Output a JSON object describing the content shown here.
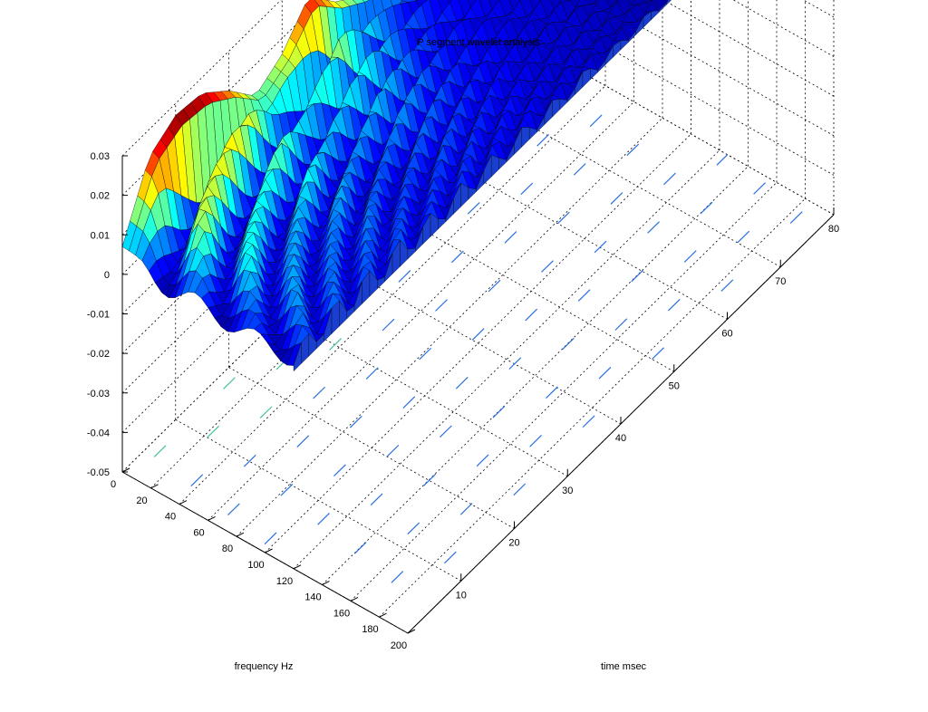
{
  "chart_data": {
    "type": "surface",
    "title": "P segment wavelet analysis",
    "xlabel": "time msec",
    "ylabel": "frequency Hz",
    "zlabel": "",
    "x_ticks": [
      "10",
      "20",
      "30",
      "40",
      "50",
      "60",
      "70",
      "80"
    ],
    "y_ticks": [
      "0",
      "20",
      "40",
      "60",
      "80",
      "100",
      "120",
      "140",
      "160",
      "180",
      "200"
    ],
    "z_ticks": [
      "-0.05",
      "-0.04",
      "-0.03",
      "-0.02",
      "-0.01",
      "0",
      "0.01",
      "0.02",
      "0.03"
    ],
    "xlim": [
      0,
      80
    ],
    "ylim": [
      0,
      200
    ],
    "zlim": [
      -0.05,
      0.03
    ],
    "grid": true,
    "colormap": "jet",
    "contour_projection": "floor",
    "surface_z_samples": {
      "time_msec": [
        0,
        5,
        10,
        15,
        20,
        25,
        30,
        35,
        40,
        45,
        50,
        55,
        60,
        65,
        70,
        75,
        80
      ],
      "frequency_hz": [
        0,
        40,
        80,
        120,
        160,
        200
      ],
      "rows": [
        [
          0.007,
          0.023,
          0.027,
          0.026,
          0.02,
          0.012,
          0.016,
          0.024,
          0.016,
          0.011,
          0.008,
          0.006,
          0.005,
          0.004,
          0.003,
          0.002,
          0.002
        ],
        [
          0.006,
          0.016,
          0.013,
          0.012,
          0.014,
          0.01,
          0.011,
          0.012,
          0.01,
          0.007,
          0.006,
          0.005,
          0.004,
          0.003,
          0.003,
          0.002,
          0.002
        ],
        [
          0.005,
          0.01,
          0.009,
          0.008,
          0.009,
          0.007,
          0.007,
          0.008,
          0.007,
          0.006,
          0.005,
          0.004,
          0.004,
          0.003,
          0.002,
          0.002,
          0.002
        ],
        [
          0.005,
          0.008,
          0.007,
          0.007,
          0.007,
          0.006,
          0.006,
          0.006,
          0.005,
          0.005,
          0.004,
          0.004,
          0.003,
          0.003,
          0.002,
          0.002,
          0.001
        ],
        [
          0.005,
          0.007,
          0.006,
          0.006,
          0.006,
          0.005,
          0.005,
          0.005,
          0.005,
          0.004,
          0.004,
          0.003,
          0.003,
          0.002,
          0.002,
          0.002,
          0.001
        ],
        [
          0.004,
          0.006,
          0.006,
          0.005,
          0.005,
          0.005,
          0.005,
          0.004,
          0.004,
          0.004,
          0.003,
          0.003,
          0.003,
          0.002,
          0.002,
          0.001,
          0.001
        ]
      ]
    }
  }
}
